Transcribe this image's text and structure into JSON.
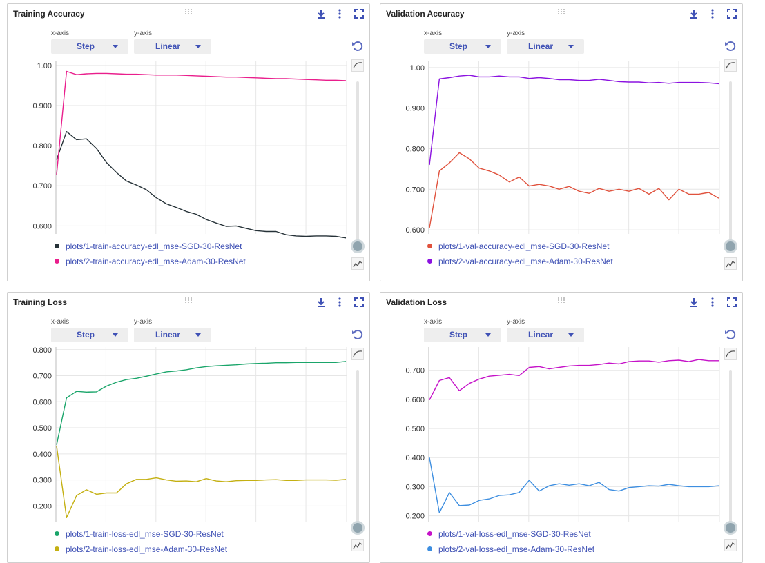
{
  "ui": {
    "xaxis_caption": "x-axis",
    "yaxis_caption": "y-axis",
    "xaxis_value": "Step",
    "yaxis_value": "Linear",
    "accent": "#3f51b5",
    "icons": [
      "download-icon",
      "more-vert-icon",
      "fullscreen-icon",
      "reset-zoom-icon",
      "smoothing-curve-icon",
      "chart-type-icon",
      "drag-handle-icon"
    ]
  },
  "chart_data": [
    {
      "type": "line",
      "title": "Training Accuracy",
      "xlabel": "",
      "ylabel": "",
      "ylim": [
        0.58,
        1.01
      ],
      "yticks": [
        0.6,
        0.7,
        0.8,
        0.9,
        1.0
      ],
      "ytick_labels": [
        "0.600",
        "0.700",
        "0.800",
        "0.900",
        "1.00"
      ],
      "x": [
        0,
        1,
        2,
        3,
        4,
        5,
        6,
        7,
        8,
        9,
        10,
        11,
        12,
        13,
        14,
        15,
        16,
        17,
        18,
        19,
        20,
        21,
        22,
        23,
        24,
        25,
        26,
        27,
        28,
        29
      ],
      "grid": true,
      "series": [
        {
          "name": "plots/1-train-accuracy-edl_mse-SGD-30-ResNet",
          "color": "#263238",
          "values": [
            0.765,
            0.835,
            0.815,
            0.817,
            0.793,
            0.758,
            0.733,
            0.712,
            0.702,
            0.69,
            0.67,
            0.655,
            0.646,
            0.636,
            0.629,
            0.616,
            0.607,
            0.599,
            0.6,
            0.594,
            0.588,
            0.586,
            0.586,
            0.578,
            0.575,
            0.574,
            0.575,
            0.575,
            0.574,
            0.57
          ]
        },
        {
          "name": "plots/2-train-accuracy-edl_mse-Adam-30-ResNet",
          "color": "#e91e8c",
          "values": [
            0.728,
            0.985,
            0.977,
            0.979,
            0.98,
            0.98,
            0.979,
            0.978,
            0.978,
            0.977,
            0.976,
            0.976,
            0.976,
            0.975,
            0.974,
            0.973,
            0.972,
            0.971,
            0.971,
            0.97,
            0.969,
            0.968,
            0.967,
            0.967,
            0.966,
            0.965,
            0.964,
            0.963,
            0.963,
            0.962
          ]
        }
      ]
    },
    {
      "type": "line",
      "title": "Validation Accuracy",
      "xlabel": "",
      "ylabel": "",
      "ylim": [
        0.59,
        1.015
      ],
      "yticks": [
        0.6,
        0.7,
        0.8,
        0.9,
        1.0
      ],
      "ytick_labels": [
        "0.600",
        "0.700",
        "0.800",
        "0.900",
        "1.00"
      ],
      "x": [
        0,
        1,
        2,
        3,
        4,
        5,
        6,
        7,
        8,
        9,
        10,
        11,
        12,
        13,
        14,
        15,
        16,
        17,
        18,
        19,
        20,
        21,
        22,
        23,
        24,
        25,
        26,
        27,
        28,
        29
      ],
      "grid": true,
      "series": [
        {
          "name": "plots/1-val-accuracy-edl_mse-SGD-30-ResNet",
          "color": "#e0523d",
          "values": [
            0.605,
            0.745,
            0.765,
            0.79,
            0.775,
            0.752,
            0.745,
            0.735,
            0.718,
            0.73,
            0.708,
            0.712,
            0.708,
            0.7,
            0.707,
            0.695,
            0.69,
            0.702,
            0.695,
            0.7,
            0.695,
            0.702,
            0.688,
            0.702,
            0.674,
            0.7,
            0.688,
            0.688,
            0.692,
            0.678
          ]
        },
        {
          "name": "plots/2-val-accuracy-edl_mse-Adam-30-ResNet",
          "color": "#8b12e0",
          "values": [
            0.76,
            0.972,
            0.975,
            0.979,
            0.981,
            0.977,
            0.977,
            0.979,
            0.977,
            0.977,
            0.973,
            0.975,
            0.973,
            0.97,
            0.97,
            0.968,
            0.968,
            0.971,
            0.968,
            0.965,
            0.964,
            0.964,
            0.962,
            0.963,
            0.961,
            0.963,
            0.963,
            0.963,
            0.962,
            0.96
          ]
        }
      ]
    },
    {
      "type": "line",
      "title": "Training Loss",
      "xlabel": "",
      "ylabel": "",
      "ylim": [
        0.14,
        0.81
      ],
      "yticks": [
        0.2,
        0.3,
        0.4,
        0.5,
        0.6,
        0.7,
        0.8
      ],
      "ytick_labels": [
        "0.200",
        "0.300",
        "0.400",
        "0.500",
        "0.600",
        "0.700",
        "0.800"
      ],
      "x": [
        0,
        1,
        2,
        3,
        4,
        5,
        6,
        7,
        8,
        9,
        10,
        11,
        12,
        13,
        14,
        15,
        16,
        17,
        18,
        19,
        20,
        21,
        22,
        23,
        24,
        25,
        26,
        27,
        28,
        29
      ],
      "grid": true,
      "series": [
        {
          "name": "plots/1-train-loss-edl_mse-SGD-30-ResNet",
          "color": "#1aa56a",
          "values": [
            0.435,
            0.615,
            0.64,
            0.637,
            0.638,
            0.66,
            0.675,
            0.685,
            0.69,
            0.698,
            0.707,
            0.715,
            0.718,
            0.723,
            0.73,
            0.735,
            0.738,
            0.74,
            0.742,
            0.745,
            0.747,
            0.748,
            0.75,
            0.75,
            0.751,
            0.751,
            0.751,
            0.751,
            0.751,
            0.755
          ]
        },
        {
          "name": "plots/2-train-loss-edl_mse-Adam-30-ResNet",
          "color": "#c4b012",
          "values": [
            0.43,
            0.155,
            0.24,
            0.262,
            0.245,
            0.25,
            0.25,
            0.285,
            0.302,
            0.302,
            0.308,
            0.3,
            0.295,
            0.296,
            0.293,
            0.305,
            0.296,
            0.293,
            0.297,
            0.298,
            0.298,
            0.3,
            0.301,
            0.298,
            0.298,
            0.3,
            0.3,
            0.3,
            0.299,
            0.302
          ]
        }
      ]
    },
    {
      "type": "line",
      "title": "Validation Loss",
      "xlabel": "",
      "ylabel": "",
      "ylim": [
        0.18,
        0.78
      ],
      "yticks": [
        0.2,
        0.3,
        0.4,
        0.5,
        0.6,
        0.7
      ],
      "ytick_labels": [
        "0.200",
        "0.300",
        "0.400",
        "0.500",
        "0.600",
        "0.700"
      ],
      "x": [
        0,
        1,
        2,
        3,
        4,
        5,
        6,
        7,
        8,
        9,
        10,
        11,
        12,
        13,
        14,
        15,
        16,
        17,
        18,
        19,
        20,
        21,
        22,
        23,
        24,
        25,
        26,
        27,
        28,
        29
      ],
      "grid": true,
      "series": [
        {
          "name": "plots/1-val-loss-edl_mse-SGD-30-ResNet",
          "color": "#c512c8",
          "values": [
            0.598,
            0.665,
            0.675,
            0.63,
            0.655,
            0.67,
            0.68,
            0.683,
            0.686,
            0.682,
            0.71,
            0.713,
            0.705,
            0.71,
            0.715,
            0.717,
            0.717,
            0.72,
            0.725,
            0.722,
            0.73,
            0.732,
            0.732,
            0.728,
            0.733,
            0.735,
            0.73,
            0.737,
            0.733,
            0.733
          ]
        },
        {
          "name": "plots/2-val-loss-edl_mse-Adam-30-ResNet",
          "color": "#3d8ee0",
          "values": [
            0.4,
            0.21,
            0.28,
            0.235,
            0.237,
            0.253,
            0.258,
            0.27,
            0.272,
            0.28,
            0.322,
            0.285,
            0.303,
            0.31,
            0.305,
            0.31,
            0.303,
            0.315,
            0.29,
            0.285,
            0.297,
            0.3,
            0.303,
            0.302,
            0.308,
            0.303,
            0.3,
            0.3,
            0.3,
            0.303
          ]
        }
      ]
    }
  ]
}
